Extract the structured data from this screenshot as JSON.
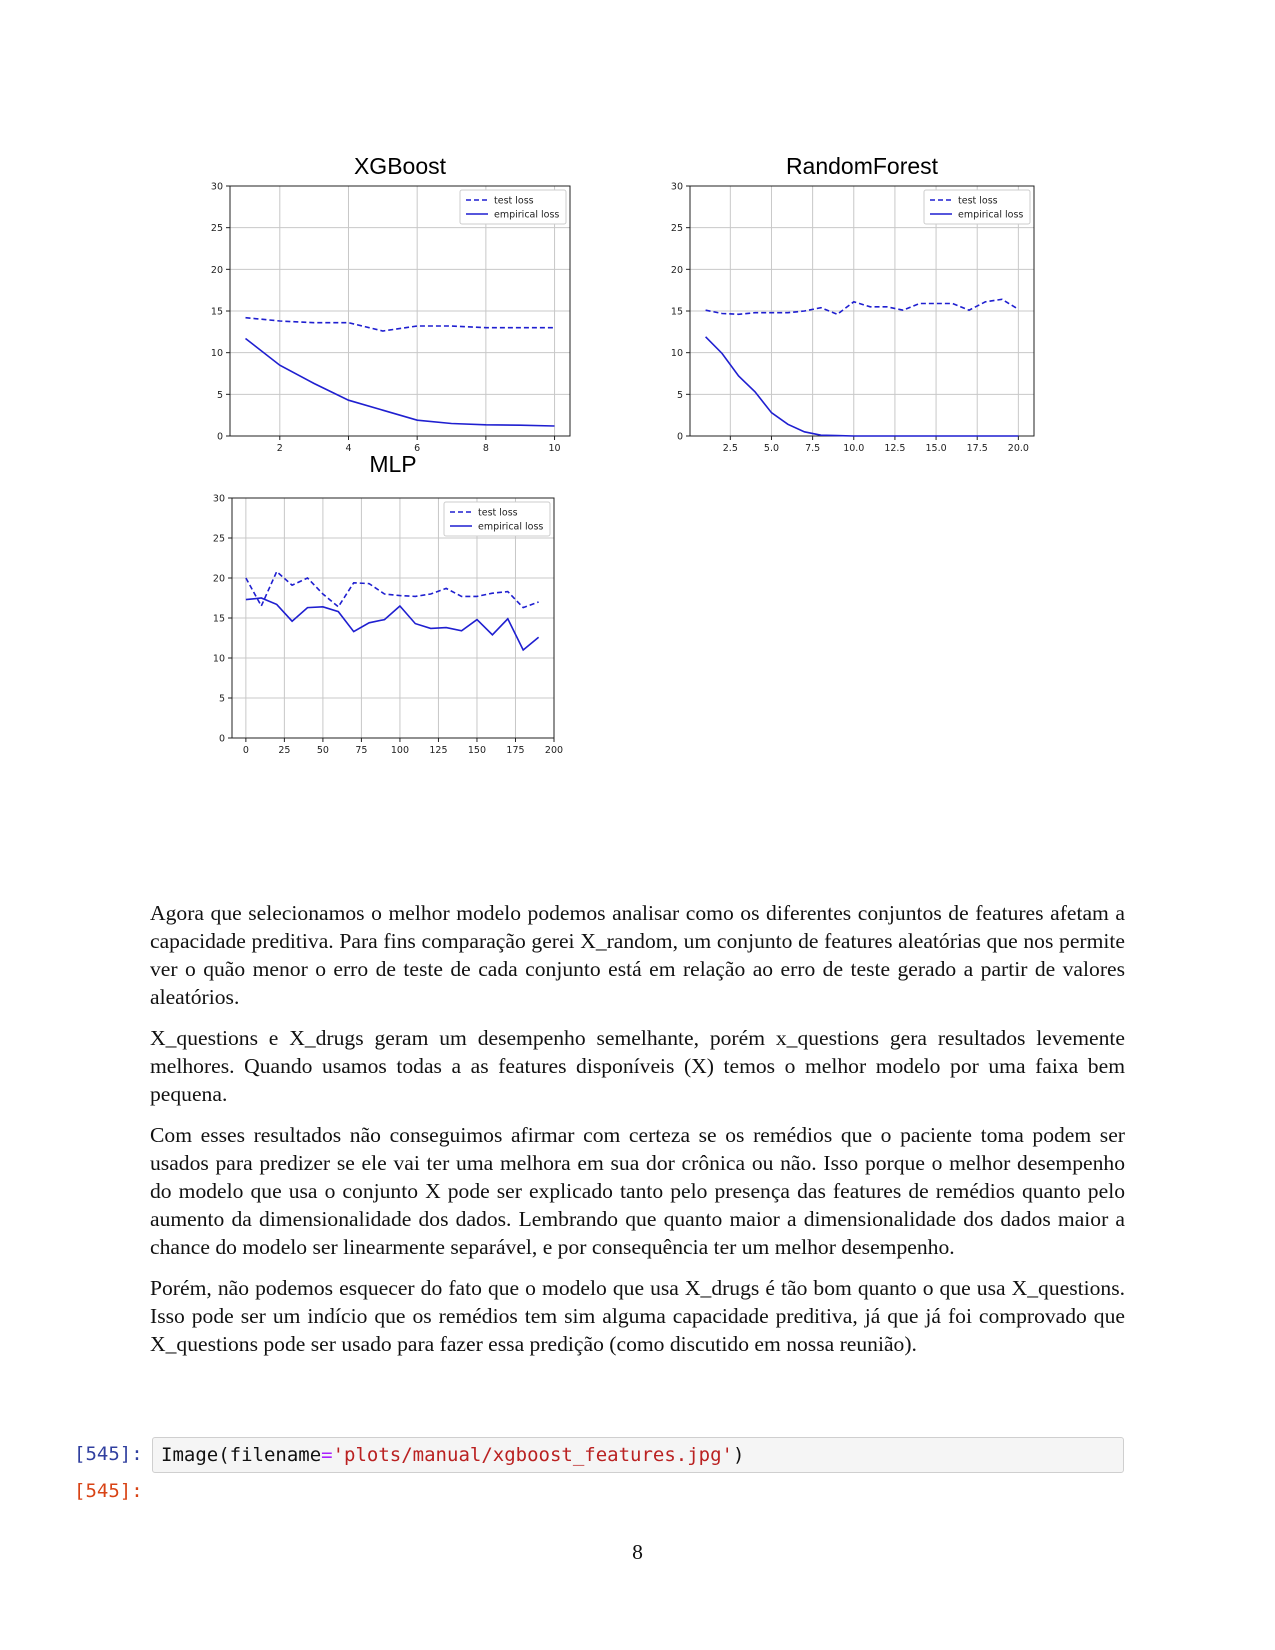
{
  "chart_data": [
    {
      "type": "line",
      "title": "XGBoost",
      "xlim": [
        0.55,
        10.45
      ],
      "ylim": [
        0,
        30
      ],
      "xticks": [
        2,
        4,
        6,
        8,
        10
      ],
      "yticks": [
        0,
        5,
        10,
        15,
        20,
        25,
        30
      ],
      "grid": true,
      "legend": "top-right",
      "series": [
        {
          "name": "test loss",
          "style": "dashed",
          "color": "#1f1fd0",
          "x": [
            1,
            2,
            3,
            4,
            5,
            6,
            7,
            8,
            9,
            10
          ],
          "y": [
            14.2,
            13.8,
            13.6,
            13.6,
            12.6,
            13.2,
            13.2,
            13.0,
            13.0,
            13.0
          ]
        },
        {
          "name": "empirical loss",
          "style": "solid",
          "color": "#1f1fd0",
          "x": [
            1,
            2,
            3,
            4,
            5,
            6,
            7,
            8,
            9,
            10
          ],
          "y": [
            11.7,
            8.5,
            6.3,
            4.3,
            3.1,
            1.9,
            1.5,
            1.35,
            1.3,
            1.2
          ]
        }
      ]
    },
    {
      "type": "line",
      "title": "RandomForest",
      "xlim": [
        0.05,
        20.95
      ],
      "ylim": [
        0,
        30
      ],
      "xticks": [
        2.5,
        5.0,
        7.5,
        10.0,
        12.5,
        15.0,
        17.5,
        20.0
      ],
      "yticks": [
        0,
        5,
        10,
        15,
        20,
        25,
        30
      ],
      "grid": true,
      "legend": "top-right",
      "series": [
        {
          "name": "test loss",
          "style": "dashed",
          "color": "#1f1fd0",
          "x": [
            1,
            2,
            3,
            4,
            5,
            6,
            7,
            8,
            9,
            10,
            11,
            12,
            13,
            14,
            15,
            16,
            17,
            18,
            19,
            20
          ],
          "y": [
            15.1,
            14.7,
            14.6,
            14.8,
            14.8,
            14.8,
            15.0,
            15.4,
            14.6,
            16.1,
            15.5,
            15.5,
            15.1,
            15.9,
            15.9,
            15.9,
            15.1,
            16.1,
            16.4,
            15.2
          ]
        },
        {
          "name": "empirical loss",
          "style": "solid",
          "color": "#1f1fd0",
          "x": [
            1,
            2,
            3,
            4,
            5,
            6,
            7,
            8,
            9,
            10,
            11,
            12,
            13,
            14,
            15,
            16,
            17,
            18,
            19,
            20
          ],
          "y": [
            11.9,
            9.9,
            7.2,
            5.3,
            2.8,
            1.4,
            0.5,
            0.1,
            0.05,
            0,
            0,
            0,
            0,
            0,
            0,
            0,
            0,
            0,
            0,
            0
          ]
        }
      ]
    },
    {
      "type": "line",
      "title": "MLP",
      "xlim": [
        -9,
        200
      ],
      "ylim": [
        0,
        30
      ],
      "xticks": [
        0,
        25,
        50,
        75,
        100,
        125,
        150,
        175,
        200
      ],
      "yticks": [
        0,
        5,
        10,
        15,
        20,
        25,
        30
      ],
      "grid": true,
      "legend": "top-right",
      "series": [
        {
          "name": "test loss",
          "style": "dashed",
          "color": "#1f1fd0",
          "x": [
            0,
            10,
            20,
            30,
            40,
            50,
            60,
            70,
            80,
            90,
            100,
            110,
            120,
            130,
            140,
            150,
            160,
            170,
            180,
            190
          ],
          "y": [
            20.0,
            16.5,
            20.8,
            19.1,
            20.0,
            18.0,
            16.4,
            19.4,
            19.3,
            18.0,
            17.8,
            17.7,
            18.0,
            18.7,
            17.7,
            17.7,
            18.1,
            18.3,
            16.3,
            17.0
          ]
        },
        {
          "name": "empirical loss",
          "style": "solid",
          "color": "#1f1fd0",
          "x": [
            0,
            10,
            20,
            30,
            40,
            50,
            60,
            70,
            80,
            90,
            100,
            110,
            120,
            130,
            140,
            150,
            160,
            170,
            180,
            190
          ],
          "y": [
            17.3,
            17.5,
            16.7,
            14.6,
            16.3,
            16.4,
            15.8,
            13.3,
            14.4,
            14.8,
            16.5,
            14.3,
            13.7,
            13.8,
            13.4,
            14.8,
            12.9,
            14.9,
            11.0,
            12.6
          ]
        }
      ]
    }
  ],
  "paragraphs": [
    "Agora que selecionamos o melhor modelo podemos analisar como os diferentes conjuntos de features afetam a capacidade preditiva. Para fins comparação gerei X_random, um conjunto de features aleatórias que nos permite ver o quão menor o erro de teste de cada conjunto está em relação ao erro de teste gerado a partir de valores aleatórios.",
    "X_questions e X_drugs geram um desempenho semelhante, porém x_questions gera resultados levemente melhores. Quando usamos todas a as features disponíveis (X) temos o melhor modelo por uma faixa bem pequena.",
    "Com esses resultados não conseguimos afirmar com certeza se os remédios que o paciente toma podem ser usados para predizer se ele vai ter uma melhora em sua dor crônica ou não. Isso porque o melhor desempenho do modelo que usa o conjunto X pode ser explicado tanto pelo presença das features de remédios quanto pelo aumento da dimensionalidade dos dados. Lembrando que quanto maior a dimensionalidade dos dados maior a chance do modelo ser linearmente separável, e por consequência ter um melhor desempenho.",
    "Porém, não podemos esquecer do fato que o modelo que usa X_drugs é tão bom quanto o que usa X_questions. Isso pode ser um indício que os remédios tem sim alguma capacidade preditiva, já que já foi comprovado que X_questions pode ser usado para fazer essa predição (como discutido em nossa reunião)."
  ],
  "cell": {
    "in_prompt": "[545]:",
    "out_prompt": "[545]:",
    "code_func": "Image(filename",
    "code_op": "=",
    "code_str": "'plots/manual/xgboost_features.jpg'",
    "code_end": ")"
  },
  "page_number": "8"
}
